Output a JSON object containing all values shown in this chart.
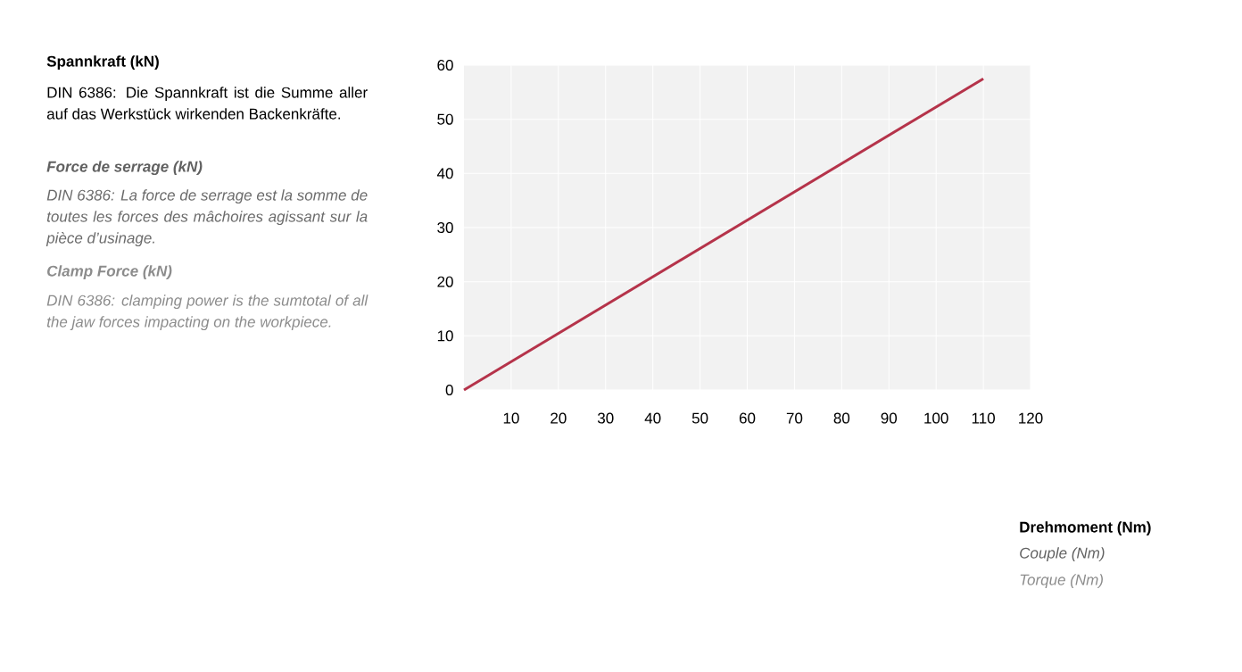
{
  "chart_data": {
    "type": "line",
    "annotations": [
      "Spannkraft (kN)",
      "DIN 6386: Die Spannkraft ist die Summe aller auf das Werkstück wirkenden Backenkräfte.",
      "Force de serrage (kN)",
      "DIN 6386: La force de serrage est la somme de toutes les forces des mâchoires agissant sur la pièce d’usinage.",
      "Clamp Force (kN)",
      "DIN 6386: clamping power is the sumtotal of all the jaw forces impacting on the workpiece.",
      "Drehmoment (Nm)",
      "Couple (Nm)",
      "Torque (Nm)"
    ],
    "x": [
      0,
      110
    ],
    "series": [
      {
        "color": "#b5334a",
        "values": [
          0,
          57.5
        ]
      }
    ],
    "xlim": [
      0,
      120
    ],
    "ylim": [
      0,
      60
    ],
    "xticks": [
      10,
      20,
      30,
      40,
      50,
      60,
      70,
      80,
      90,
      100,
      110,
      120
    ],
    "yticks": [
      0,
      10,
      20,
      30,
      40,
      50,
      60
    ],
    "grid": true,
    "marker": "none",
    "line_style": "solid"
  }
}
